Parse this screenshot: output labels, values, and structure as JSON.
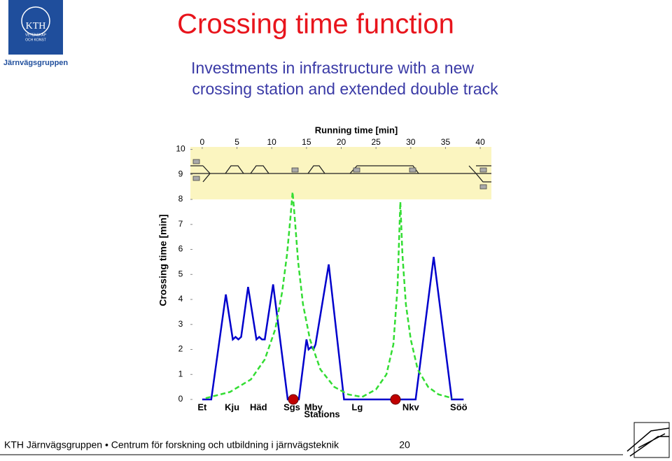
{
  "header": {
    "logo_text": [
      "KTH",
      "VETENSKAP",
      "OCH KONST"
    ],
    "group": "Järnvägsgruppen",
    "title": "Crossing time function",
    "subtitle": [
      "Investments in infrastructure with a new",
      "crossing station and extended double track"
    ]
  },
  "chart_data": {
    "type": "line",
    "x_label": "Running time [min]",
    "y_label": "Crossing time [min]",
    "station_label": "Stations",
    "xlim": [
      -1.7,
      41.6
    ],
    "xticks": [
      0,
      5,
      10,
      15,
      20,
      25,
      30,
      35,
      40
    ],
    "ylim": [
      0,
      10.1
    ],
    "yticks": [
      0,
      1,
      2,
      3,
      4,
      5,
      6,
      7,
      8,
      9,
      10
    ],
    "series": [
      {
        "color": "#0000cc",
        "dashed": false,
        "x": [
          0,
          1.3,
          3.4,
          4.4,
          4.8,
          5.2,
          5.6,
          6.6,
          7.8,
          8.2,
          8.6,
          9,
          10.2,
          12.3,
          13.9,
          15,
          15.3,
          15.7,
          16,
          16.3,
          18.2,
          20.4,
          30.7,
          33.3,
          35.9,
          37.6
        ],
        "values": [
          0,
          0,
          4.2,
          2.4,
          2.5,
          2.4,
          2.5,
          4.5,
          2.4,
          2.5,
          2.4,
          2.4,
          4.6,
          0,
          0,
          2.4,
          2.0,
          2.1,
          2.0,
          2.2,
          5.4,
          0,
          0,
          5.7,
          0,
          0
        ]
      },
      {
        "color": "#33dd33",
        "dashed": true,
        "x": [
          0.5,
          4,
          7,
          9,
          10.5,
          11.5,
          12.2,
          12.7,
          13,
          13.3,
          13.8,
          14.5,
          15.5,
          17,
          19,
          21,
          23,
          25,
          26.5,
          27.5,
          28.1,
          28.5,
          28.8,
          29.3,
          30,
          31,
          32.5,
          34,
          36
        ],
        "values": [
          0.05,
          0.3,
          0.8,
          1.6,
          2.8,
          4.3,
          5.8,
          7.3,
          8.3,
          7.3,
          5.5,
          3.8,
          2.4,
          1.2,
          0.5,
          0.2,
          0.1,
          0.4,
          1.0,
          2.2,
          4.5,
          7.9,
          5.8,
          3.8,
          2.4,
          1.2,
          0.5,
          0.2,
          0.05
        ]
      }
    ],
    "stations": {
      "names": [
        "Et",
        "Kju",
        "Häd",
        "Sgs",
        "Mby",
        "Lg",
        "Nkv",
        "Söö"
      ],
      "x": [
        0,
        4.3,
        8.1,
        12.9,
        16.0,
        22.3,
        30.0,
        36.9
      ]
    },
    "markers": {
      "x": [
        13.1,
        27.8
      ],
      "y": [
        0,
        0
      ],
      "color": "#c00000"
    },
    "band": {
      "from": 8,
      "to": 10.1,
      "color": "#fbf5c0"
    }
  },
  "footer": {
    "text": "KTH Järnvägsgruppen • Centrum för forskning och utbildning i järnvägsteknik",
    "page": "20"
  }
}
